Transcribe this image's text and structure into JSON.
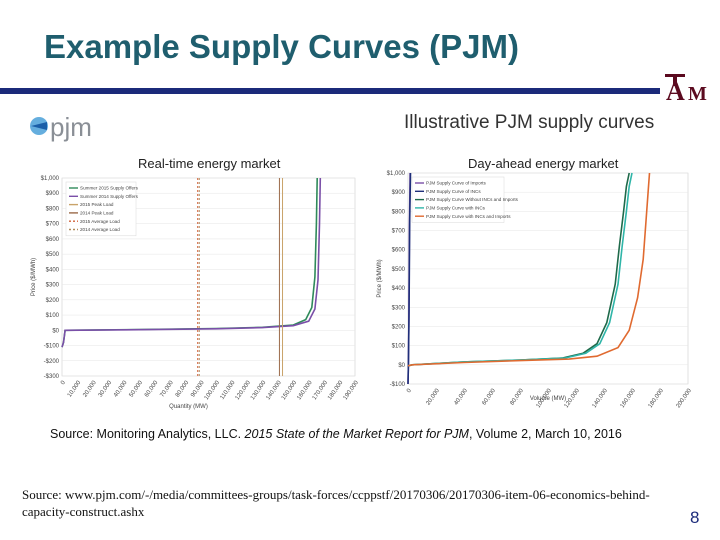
{
  "slide": {
    "title": "Example Supply Curves (PJM)",
    "page_number": "8",
    "url_text": "Source: www.pjm.com/-/media/committees-groups/task-forces/ccppstf/20170306/20170306-item-06-economics-behind-capacity-construct.ashx"
  },
  "logos": {
    "pjm": "pjm",
    "tamu": "ĀM"
  },
  "figure": {
    "heading": "Illustrative PJM supply curves",
    "source_prefix": "Source: Monitoring Analytics, LLC. ",
    "source_italic": "2015 State of the Market Report for PJM",
    "source_suffix": ", Volume 2, March 10, 2016"
  },
  "colors": {
    "title": "#1f5e6e",
    "title_bar": "#1b2a7a",
    "tamu_maroon": "#5b0a1f"
  },
  "chart_data": [
    {
      "type": "line",
      "title": "Real-time energy market",
      "xlabel": "Quantity (MW)",
      "ylabel": "Price ($/MWh)",
      "xlim": [
        0,
        190000
      ],
      "ylim": [
        -300,
        1000
      ],
      "y_ticks": [
        1000,
        900,
        800,
        700,
        600,
        500,
        400,
        300,
        200,
        100,
        0,
        -100,
        -200,
        -300
      ],
      "y_tick_labels": [
        "$1,000",
        "$900",
        "$800",
        "$700",
        "$600",
        "$500",
        "$400",
        "$300",
        "$200",
        "$100",
        "$0",
        "-$100",
        "-$200",
        "-$300"
      ],
      "x_ticks": [
        0,
        10000,
        20000,
        30000,
        40000,
        50000,
        60000,
        70000,
        80000,
        90000,
        100000,
        110000,
        120000,
        130000,
        140000,
        150000,
        160000,
        170000,
        180000,
        190000
      ],
      "x_tick_labels": [
        "0",
        "10,000",
        "20,000",
        "30,000",
        "40,000",
        "50,000",
        "60,000",
        "70,000",
        "80,000",
        "90,000",
        "100,000",
        "110,000",
        "120,000",
        "130,000",
        "140,000",
        "150,000",
        "160,000",
        "170,000",
        "180,000",
        "190,000"
      ],
      "legend_position": "top-left",
      "series": [
        {
          "name": "Summer 2015 Supply Offers",
          "color": "#2f8a5a",
          "dash": "",
          "x": [
            0,
            1000,
            2000,
            50000,
            100000,
            130000,
            150000,
            158000,
            162000,
            164000,
            165000,
            165500
          ],
          "y": [
            -110,
            -80,
            0,
            5,
            12,
            20,
            35,
            70,
            150,
            350,
            700,
            1000
          ]
        },
        {
          "name": "Summer 2014 Supply Offers",
          "color": "#7a4fa8",
          "dash": "",
          "x": [
            0,
            1000,
            2000,
            50000,
            100000,
            130000,
            150000,
            160000,
            164000,
            166000,
            167000,
            167500
          ],
          "y": [
            -110,
            -80,
            0,
            4,
            10,
            18,
            30,
            60,
            140,
            330,
            700,
            1000
          ]
        },
        {
          "name": "2015 Peak Load",
          "color": "#c9a36a",
          "dash": "",
          "vline": 143000
        },
        {
          "name": "2014 Peak Load",
          "color": "#9b6b4a",
          "dash": "",
          "vline": 141000
        },
        {
          "name": "2015 Average Load",
          "color": "#d0613a",
          "dash": "2,2",
          "vline": 88000
        },
        {
          "name": "2014 Average Load",
          "color": "#b08a5a",
          "dash": "2,2",
          "vline": 89000
        }
      ]
    },
    {
      "type": "line",
      "title": "Day-ahead energy market",
      "xlabel": "Volume (MW)",
      "ylabel": "Price ($/MWh)",
      "xlim": [
        0,
        200000
      ],
      "ylim": [
        -100,
        1000
      ],
      "y_ticks": [
        1000,
        900,
        800,
        700,
        600,
        500,
        400,
        300,
        200,
        100,
        0,
        -100
      ],
      "y_tick_labels": [
        "$1,000",
        "$900",
        "$800",
        "$700",
        "$600",
        "$500",
        "$400",
        "$300",
        "$200",
        "$100",
        "$0",
        "-$100"
      ],
      "x_ticks": [
        0,
        20000,
        40000,
        60000,
        80000,
        100000,
        120000,
        140000,
        160000,
        180000,
        200000
      ],
      "x_tick_labels": [
        "0",
        "20,000",
        "40,000",
        "60,000",
        "80,000",
        "100,000",
        "120,000",
        "140,000",
        "160,000",
        "180,000",
        "200,000"
      ],
      "legend_position": "top-left",
      "series": [
        {
          "name": "PJM Supply Curve of Imports",
          "color": "#7a4fa8",
          "x": [
            0,
            300,
            600,
            1000,
            1500
          ],
          "y": [
            -100,
            0,
            200,
            700,
            1000
          ]
        },
        {
          "name": "PJM Supply Curve of INCs",
          "color": "#1f2f7a",
          "x": [
            0,
            300,
            700,
            1200,
            1800
          ],
          "y": [
            -100,
            0,
            250,
            750,
            1000
          ]
        },
        {
          "name": "PJM Supply Curve Without INCs and Imports",
          "color": "#1f6a4a",
          "x": [
            0,
            3000,
            40000,
            80000,
            110000,
            125000,
            135000,
            142000,
            148000,
            151000,
            154000,
            156000,
            158000
          ],
          "y": [
            -5,
            0,
            15,
            25,
            35,
            60,
            110,
            220,
            420,
            620,
            800,
            930,
            1000
          ]
        },
        {
          "name": "PJM Supply Curve with INCs",
          "color": "#2fb5a8",
          "x": [
            0,
            3000,
            40000,
            80000,
            112000,
            127000,
            137000,
            144000,
            150000,
            153000,
            156000,
            158000,
            160000
          ],
          "y": [
            -5,
            0,
            15,
            25,
            35,
            60,
            110,
            220,
            420,
            620,
            800,
            930,
            1000
          ]
        },
        {
          "name": "PJM Supply Curve with INCs and Imports",
          "color": "#e06a30",
          "x": [
            0,
            3000,
            40000,
            80000,
            115000,
            135000,
            150000,
            158000,
            164000,
            168000,
            170000,
            171500,
            172500
          ],
          "y": [
            -5,
            0,
            12,
            22,
            30,
            45,
            90,
            180,
            350,
            550,
            750,
            900,
            1000
          ]
        }
      ]
    }
  ]
}
